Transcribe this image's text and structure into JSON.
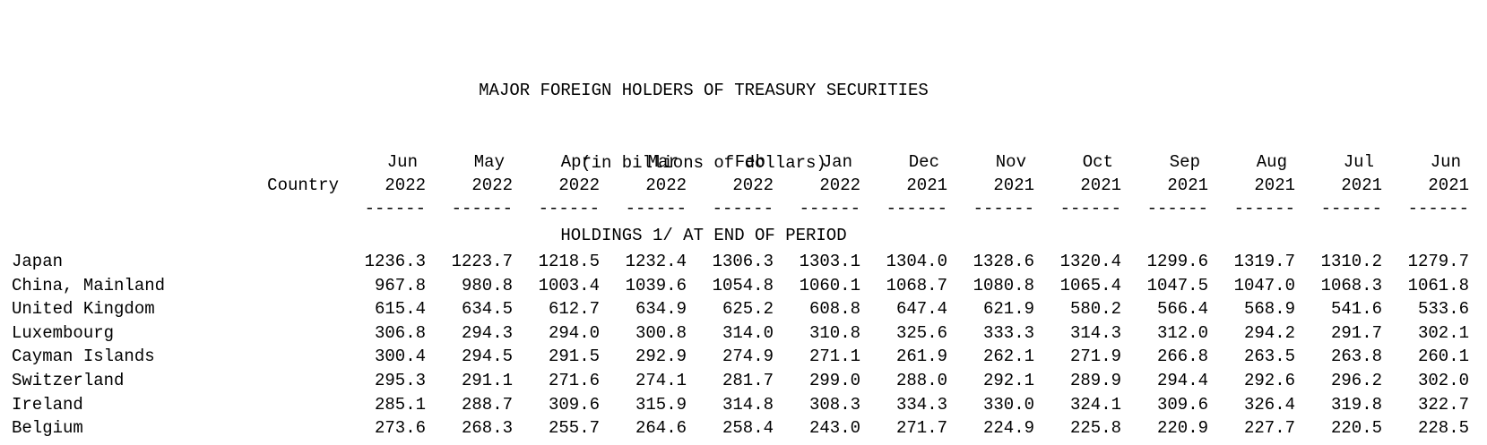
{
  "title": {
    "line1": "MAJOR FOREIGN HOLDERS OF TREASURY SECURITIES",
    "line2": "(in billions of dollars)",
    "line3": "HOLDINGS 1/ AT END OF PERIOD"
  },
  "table": {
    "country_header": "Country",
    "underline": "------",
    "columns": [
      {
        "month": "Jun",
        "year": "2022"
      },
      {
        "month": "May",
        "year": "2022"
      },
      {
        "month": "Apr",
        "year": "2022"
      },
      {
        "month": "Mar",
        "year": "2022"
      },
      {
        "month": "Feb",
        "year": "2022"
      },
      {
        "month": "Jan",
        "year": "2022"
      },
      {
        "month": "Dec",
        "year": "2021"
      },
      {
        "month": "Nov",
        "year": "2021"
      },
      {
        "month": "Oct",
        "year": "2021"
      },
      {
        "month": "Sep",
        "year": "2021"
      },
      {
        "month": "Aug",
        "year": "2021"
      },
      {
        "month": "Jul",
        "year": "2021"
      },
      {
        "month": "Jun",
        "year": "2021"
      }
    ],
    "rows": [
      {
        "country": "Japan",
        "values": [
          "1236.3",
          "1223.7",
          "1218.5",
          "1232.4",
          "1306.3",
          "1303.1",
          "1304.0",
          "1328.6",
          "1320.4",
          "1299.6",
          "1319.7",
          "1310.2",
          "1279.7"
        ]
      },
      {
        "country": "China, Mainland",
        "values": [
          "967.8",
          "980.8",
          "1003.4",
          "1039.6",
          "1054.8",
          "1060.1",
          "1068.7",
          "1080.8",
          "1065.4",
          "1047.5",
          "1047.0",
          "1068.3",
          "1061.8"
        ]
      },
      {
        "country": "United Kingdom",
        "values": [
          "615.4",
          "634.5",
          "612.7",
          "634.9",
          "625.2",
          "608.8",
          "647.4",
          "621.9",
          "580.2",
          "566.4",
          "568.9",
          "541.6",
          "533.6"
        ]
      },
      {
        "country": "Luxembourg",
        "values": [
          "306.8",
          "294.3",
          "294.0",
          "300.8",
          "314.0",
          "310.8",
          "325.6",
          "333.3",
          "314.3",
          "312.0",
          "294.2",
          "291.7",
          "302.1"
        ]
      },
      {
        "country": "Cayman Islands",
        "values": [
          "300.4",
          "294.5",
          "291.5",
          "292.9",
          "274.9",
          "271.1",
          "261.9",
          "262.1",
          "271.9",
          "266.8",
          "263.5",
          "263.8",
          "260.1"
        ]
      },
      {
        "country": "Switzerland",
        "values": [
          "295.3",
          "291.1",
          "271.6",
          "274.1",
          "281.7",
          "299.0",
          "288.0",
          "292.1",
          "289.9",
          "294.4",
          "292.6",
          "296.2",
          "302.0"
        ]
      },
      {
        "country": "Ireland",
        "values": [
          "285.1",
          "288.7",
          "309.6",
          "315.9",
          "314.8",
          "308.3",
          "334.3",
          "330.0",
          "324.1",
          "309.6",
          "326.4",
          "319.8",
          "322.7"
        ]
      },
      {
        "country": "Belgium",
        "values": [
          "273.6",
          "268.3",
          "255.7",
          "264.6",
          "258.4",
          "243.0",
          "271.7",
          "224.9",
          "225.8",
          "220.9",
          "227.7",
          "220.5",
          "228.5"
        ]
      }
    ]
  }
}
